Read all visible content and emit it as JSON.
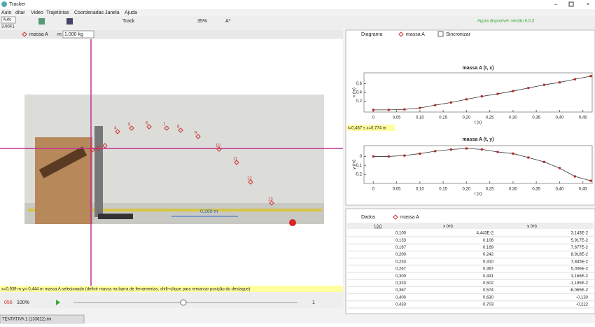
{
  "window": {
    "title": "Tracker"
  },
  "menu": [
    "Auto",
    "ditar",
    "Video",
    "Trajetórias",
    "Coordenadas",
    "Janela",
    "Ajuda"
  ],
  "toolbar": {
    "clip": "Auto",
    "frame": "3.00F1",
    "track": "Track",
    "zoom": "35%",
    "font": "A*",
    "update": "Agora disponível: versão 6.0.3"
  },
  "track_bar": {
    "name": "massa A",
    "mass_label": "m",
    "mass": "1,000 kg"
  },
  "video": {
    "markers": [
      "4",
      "5",
      "6",
      "7",
      "8",
      "9",
      "10",
      "11",
      "12",
      "13"
    ],
    "tape": "0,260 m"
  },
  "status": "x=0,939 m  y=-0,444 m massa A selecionado (definir massa na barra de ferramentas, shift+clique para remarcar posição do destaque)",
  "player": {
    "frame": "056",
    "zoom": "100%",
    "step": "1"
  },
  "graph_panel": {
    "view": "Diagrama",
    "track": "massa A",
    "sync": "Sincronizar",
    "readout": "t=0,467 s  x=0,774 m",
    "plots": [
      {
        "type": "line",
        "title": "massa A (t, x)",
        "x_label": "t (s)",
        "y_label": "x (m)",
        "x": [
          0,
          0.033,
          0.067,
          0.1,
          0.133,
          0.167,
          0.2,
          0.233,
          0.267,
          0.3,
          0.333,
          0.367,
          0.4,
          0.433,
          0.467
        ],
        "values": [
          0,
          0,
          0.01,
          0.044,
          0.108,
          0.169,
          0.242,
          0.31,
          0.367,
          0.431,
          0.502,
          0.574,
          0.63,
          0.703,
          0.774
        ],
        "xlim": [
          -0.02,
          0.47
        ],
        "ylim": [
          -0.05,
          0.85
        ],
        "xticks": [
          0,
          {
            "value": 0.05,
            "label": "0,05"
          },
          {
            "value": 0.1,
            "label": "0,10"
          },
          {
            "value": 0.15,
            "label": "0,15"
          },
          {
            "value": 0.2,
            "label": "0,20"
          },
          {
            "value": 0.25,
            "label": "0,25"
          },
          {
            "value": 0.3,
            "label": "0,30"
          },
          {
            "value": 0.35,
            "label": "0,35"
          },
          {
            "value": 0.4,
            "label": "0,40"
          },
          {
            "value": 0.45,
            "label": "0,45"
          }
        ],
        "yticks": [
          {
            "value": 0.2,
            "label": "0,2"
          },
          {
            "value": 0.4,
            "label": "0,4"
          },
          {
            "value": 0.6,
            "label": "0,6"
          }
        ],
        "color": "#b22222"
      },
      {
        "type": "line",
        "title": "massa A (t, y)",
        "x_label": "t (s)",
        "y_label": "y (m)",
        "x": [
          0,
          0.033,
          0.067,
          0.1,
          0.133,
          0.167,
          0.2,
          0.233,
          0.267,
          0.3,
          0.333,
          0.367,
          0.4,
          0.433,
          0.467
        ],
        "values": [
          0,
          0,
          0.01,
          0.031,
          0.059,
          0.077,
          0.089,
          0.078,
          0.05,
          0.032,
          -0.012,
          -0.061,
          -0.13,
          -0.222,
          -0.27
        ],
        "xlim": [
          -0.02,
          0.47
        ],
        "ylim": [
          -0.3,
          0.12
        ],
        "xticks": [
          0,
          {
            "value": 0.05,
            "label": "0,05"
          },
          {
            "value": 0.1,
            "label": "0,10"
          },
          {
            "value": 0.15,
            "label": "0,15"
          },
          {
            "value": 0.2,
            "label": "0,20"
          },
          {
            "value": 0.25,
            "label": "0,25"
          },
          {
            "value": 0.3,
            "label": "0,30"
          },
          {
            "value": 0.35,
            "label": "0,35"
          },
          {
            "value": 0.4,
            "label": "0,40"
          },
          {
            "value": 0.45,
            "label": "0,45"
          }
        ],
        "yticks": [
          0,
          {
            "value": -0.1,
            "label": "-0,1"
          },
          {
            "value": -0.2,
            "label": "-0,2"
          }
        ],
        "color": "#b22222"
      }
    ]
  },
  "table_panel": {
    "view": "Dados",
    "track": "massa A",
    "columns": [
      "t (s)",
      "x (m)",
      "y (m)"
    ],
    "rows": [
      [
        "0,100",
        "4,443E-2",
        "3,143E-2"
      ],
      [
        "0,133",
        "0,108",
        "5,917E-2"
      ],
      [
        "0,167",
        "0,169",
        "7,677E-2"
      ],
      [
        "0,200",
        "0,242",
        "8,918E-2"
      ],
      [
        "0,233",
        "0,310",
        "7,845E-2"
      ],
      [
        "0,267",
        "0,367",
        "5,006E-2"
      ],
      [
        "0,300",
        "0,431",
        "3,168E-2"
      ],
      [
        "0,333",
        "0,502",
        "-1,185E-2"
      ],
      [
        "0,367",
        "0,574",
        "-6,065E-2"
      ],
      [
        "0,400",
        "0,630",
        "-0,130"
      ],
      [
        "0,433",
        "0,703",
        "-0,222"
      ]
    ]
  },
  "tab": "TENTATIVA 1 (133622).trk"
}
